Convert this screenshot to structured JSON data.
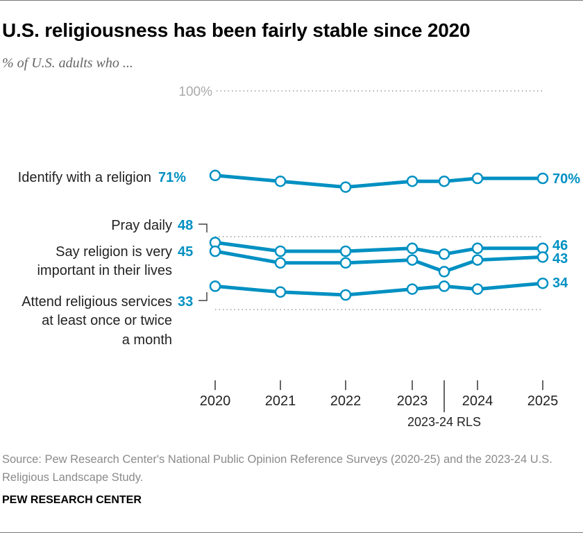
{
  "title": "U.S. religiousness has been fairly stable since 2020",
  "subtitle": "% of U.S. adults who ...",
  "source": "Source: Pew Research Center's National Public Opinion Reference Surveys (2020-25) and the 2023-24 U.S. Religious Landscape Study.",
  "brand": "PEW RESEARCH CENTER",
  "chart_data": {
    "type": "line",
    "x": [
      "2020",
      "2021",
      "2022",
      "2023",
      "2023-24 RLS",
      "2024",
      "2025"
    ],
    "x_tick_labels": [
      "2020",
      "2021",
      "2022",
      "2023",
      "2024",
      "2025"
    ],
    "extra_x_label": "2023-24 RLS",
    "ylim": [
      0,
      100
    ],
    "y_top_label": "100%",
    "grid": "dotted at 100, 50, 25",
    "line_color": "#0090C2",
    "series": [
      {
        "name": "Identify with a religion",
        "values": [
          71,
          69,
          67,
          69,
          69,
          70,
          70
        ],
        "start_label": "71%",
        "end_label": "70%"
      },
      {
        "name": "Pray daily",
        "values": [
          48,
          45,
          45,
          46,
          44,
          46,
          46
        ],
        "start_label": "48",
        "end_label": "46"
      },
      {
        "name": "Say religion is very important in their lives",
        "values": [
          45,
          41,
          41,
          42,
          38,
          42,
          43
        ],
        "start_label": "45",
        "end_label": "43"
      },
      {
        "name": "Attend religious services at least once or twice a month",
        "values": [
          33,
          31,
          30,
          32,
          33,
          32,
          34
        ],
        "start_label": "33",
        "end_label": "34"
      }
    ]
  }
}
